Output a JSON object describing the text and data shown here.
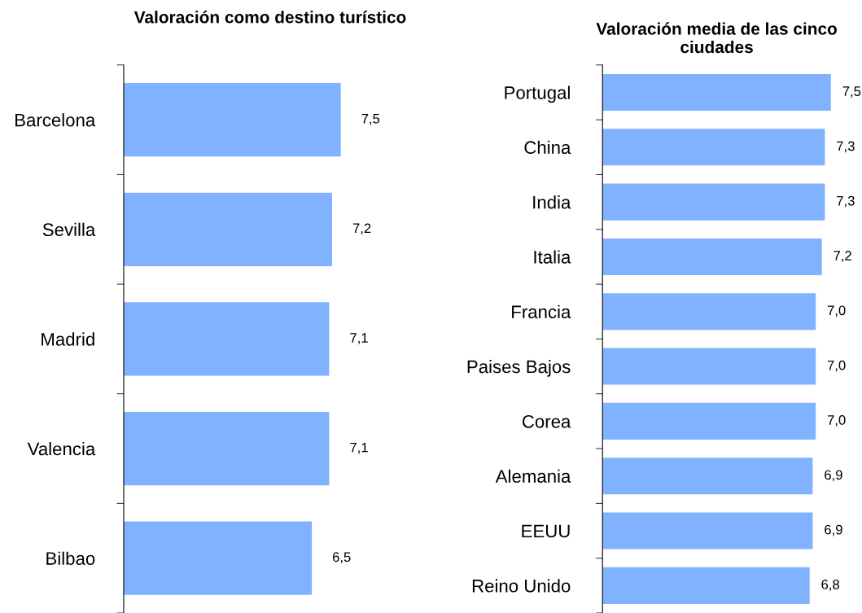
{
  "chart_data": [
    {
      "type": "bar",
      "orientation": "horizontal",
      "title": "Valoración como destino turístico",
      "categories": [
        "Barcelona",
        "Sevilla",
        "Madrid",
        "Valencia",
        "Bilbao"
      ],
      "values": [
        7.5,
        7.2,
        7.1,
        7.1,
        6.5
      ],
      "color": "#80b2ff",
      "value_labels": [
        "7,5",
        "7,2",
        "7,1",
        "7,1",
        "6,5"
      ],
      "tick_labels": "y",
      "grid": false,
      "legend": false
    },
    {
      "type": "bar",
      "orientation": "horizontal",
      "title": "Valoración media de las cinco ciudades",
      "categories": [
        "Portugal",
        "China",
        "India",
        "Italia",
        "Francia",
        "Paises Bajos",
        "Corea",
        "Alemania",
        "EEUU",
        "Reino Unido"
      ],
      "values": [
        7.5,
        7.3,
        7.3,
        7.2,
        7.0,
        7.0,
        7.0,
        6.9,
        6.9,
        6.8
      ],
      "color": "#80b2ff",
      "value_labels": [
        "7,5",
        "7,3",
        "7,3",
        "7,2",
        "7,0",
        "7,0",
        "7,0",
        "6,9",
        "6,9",
        "6,8"
      ],
      "tick_labels": "y",
      "grid": false,
      "legend": false
    }
  ]
}
